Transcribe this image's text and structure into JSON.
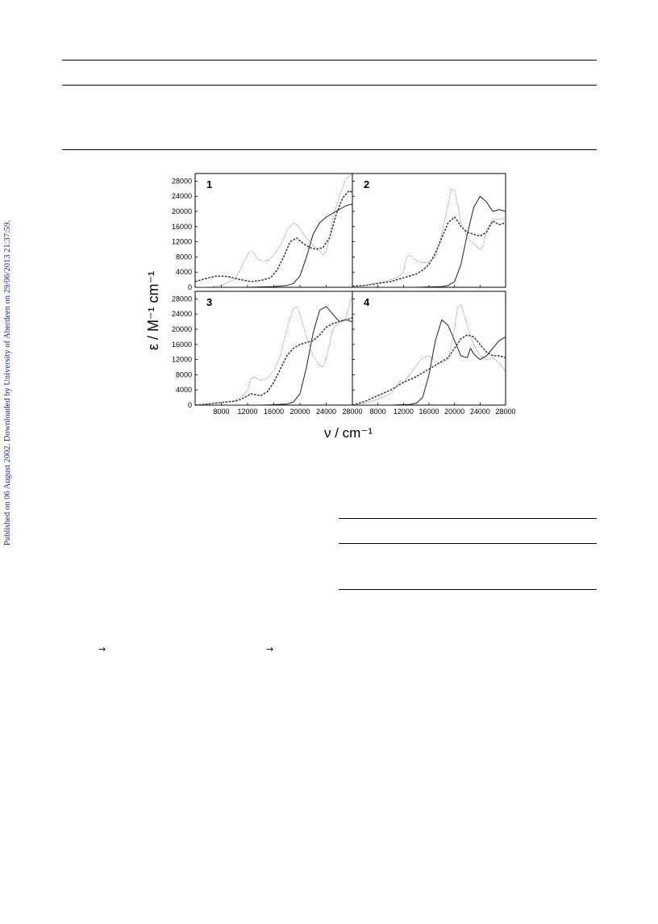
{
  "sidebar_note": "Published on 06 August 2002. Downloaded by University of Aberdeen on 29/06/2013 21:37:59.",
  "arrows": [
    "→",
    "→"
  ],
  "figure": {
    "ylabel": "ε / M⁻¹ cm⁻¹",
    "xlabel": "ν / cm⁻¹"
  },
  "chart_data": [
    {
      "type": "line",
      "panel_label": "1",
      "xlim": [
        4000,
        28000
      ],
      "ylim": [
        0,
        30000
      ],
      "yticks": [
        0,
        4000,
        8000,
        12000,
        16000,
        20000,
        24000,
        28000
      ],
      "series": [
        {
          "style": "solid",
          "x": [
            4000,
            8000,
            12000,
            14000,
            16000,
            18000,
            19000,
            20000,
            21000,
            22000,
            23000,
            24000,
            25000,
            26000,
            27000,
            28000
          ],
          "y": [
            0,
            0,
            0,
            100,
            200,
            500,
            1000,
            3000,
            8000,
            14000,
            17000,
            18500,
            19500,
            20500,
            21500,
            22000
          ]
        },
        {
          "style": "dashed",
          "x": [
            4000,
            6000,
            7500,
            9000,
            11000,
            12500,
            14000,
            15500,
            16500,
            17500,
            18500,
            19500,
            20500,
            21500,
            22500,
            23500,
            24500,
            25500,
            26500,
            27500,
            28000
          ],
          "y": [
            1500,
            2500,
            3000,
            2800,
            2000,
            1500,
            1800,
            2500,
            4500,
            8000,
            12000,
            13000,
            11500,
            10500,
            10000,
            10500,
            13000,
            19000,
            23500,
            25500,
            25000
          ]
        },
        {
          "style": "dotted",
          "x": [
            4000,
            6000,
            8000,
            10000,
            11000,
            12000,
            12500,
            13000,
            13500,
            14000,
            15000,
            16000,
            17000,
            18000,
            19000,
            19500,
            20000,
            21000,
            22000,
            23000,
            23500,
            24000,
            24500,
            25000,
            26000,
            27000,
            28000
          ],
          "y": [
            0,
            0,
            500,
            2000,
            5000,
            8500,
            9500,
            9000,
            7500,
            7000,
            7000,
            8500,
            11000,
            15000,
            17000,
            16500,
            15500,
            13000,
            11000,
            9500,
            8500,
            9500,
            13000,
            18000,
            24000,
            28500,
            30000
          ]
        }
      ]
    },
    {
      "type": "line",
      "panel_label": "2",
      "xlim": [
        4000,
        28000
      ],
      "ylim": [
        0,
        30000
      ],
      "yticks": [
        0,
        4000,
        8000,
        12000,
        16000,
        20000,
        24000,
        28000
      ],
      "series": [
        {
          "style": "solid",
          "x": [
            4000,
            10000,
            14000,
            16000,
            18000,
            19000,
            20000,
            21000,
            22000,
            23000,
            24000,
            25000,
            26000,
            27000,
            28000
          ],
          "y": [
            0,
            0,
            0,
            100,
            200,
            500,
            1500,
            6000,
            14000,
            21000,
            24000,
            22500,
            20000,
            20500,
            20000
          ]
        },
        {
          "style": "dashed",
          "x": [
            4000,
            6000,
            8000,
            10000,
            11000,
            12000,
            13000,
            14000,
            15000,
            16000,
            17000,
            18000,
            19000,
            20000,
            20500,
            21000,
            22000,
            23000,
            24000,
            25000,
            25500,
            26000,
            27000,
            28000
          ],
          "y": [
            300,
            500,
            1000,
            1500,
            2000,
            2500,
            3000,
            3500,
            4500,
            6000,
            9000,
            13000,
            17000,
            18500,
            17500,
            16000,
            14500,
            14000,
            13500,
            14500,
            16000,
            17500,
            16500,
            17000
          ]
        },
        {
          "style": "dotted",
          "x": [
            4000,
            6000,
            8000,
            10000,
            11000,
            12000,
            12500,
            13000,
            14000,
            15000,
            16000,
            17000,
            18000,
            19000,
            19500,
            20000,
            20500,
            21000,
            22000,
            23000,
            24000,
            24500,
            25000,
            26000,
            27000,
            28000
          ],
          "y": [
            0,
            500,
            1200,
            2000,
            2500,
            4000,
            8000,
            8500,
            7000,
            6500,
            6500,
            8000,
            14000,
            22000,
            26000,
            25500,
            22000,
            17000,
            13000,
            11500,
            10000,
            11000,
            15000,
            18000,
            18000,
            18000
          ]
        }
      ]
    },
    {
      "type": "line",
      "panel_label": "3",
      "xlim": [
        4000,
        28000
      ],
      "ylim": [
        0,
        30000
      ],
      "yticks": [
        0,
        4000,
        8000,
        12000,
        16000,
        20000,
        24000,
        28000
      ],
      "series": [
        {
          "style": "solid",
          "x": [
            4000,
            10000,
            14000,
            16000,
            18000,
            19000,
            20000,
            21000,
            22000,
            23000,
            24000,
            25000,
            26000,
            27000,
            28000
          ],
          "y": [
            0,
            0,
            0,
            100,
            300,
            800,
            3000,
            10000,
            19000,
            25000,
            26000,
            24000,
            22000,
            22500,
            22000
          ]
        },
        {
          "style": "dashed",
          "x": [
            4000,
            6000,
            8000,
            10000,
            11000,
            12000,
            12500,
            13000,
            14000,
            15000,
            16000,
            17000,
            18000,
            19000,
            20000,
            21000,
            22000,
            23000,
            24000,
            25000,
            26000,
            27000,
            28000
          ],
          "y": [
            0,
            300,
            700,
            1000,
            1500,
            2500,
            3000,
            2800,
            2500,
            3500,
            6000,
            9500,
            13000,
            15000,
            16000,
            16500,
            17000,
            18500,
            20500,
            21500,
            22000,
            22500,
            23000
          ]
        },
        {
          "style": "dotted",
          "x": [
            4000,
            6000,
            8000,
            10000,
            11000,
            12000,
            12500,
            13000,
            14000,
            15000,
            16000,
            17000,
            18000,
            19000,
            19500,
            20000,
            21000,
            22000,
            23000,
            23500,
            24000,
            24500,
            25000,
            26000,
            27000,
            28000
          ],
          "y": [
            0,
            300,
            700,
            1200,
            2000,
            4000,
            7000,
            7500,
            6500,
            7000,
            9000,
            13000,
            20000,
            25500,
            26000,
            24000,
            18000,
            13000,
            10500,
            10000,
            12000,
            16000,
            20000,
            22000,
            23000,
            29000
          ]
        }
      ]
    },
    {
      "type": "line",
      "panel_label": "4",
      "xlim": [
        4000,
        28000
      ],
      "ylim": [
        0,
        30000
      ],
      "yticks": [
        0,
        4000,
        8000,
        12000,
        16000,
        20000,
        24000,
        28000
      ],
      "series": [
        {
          "style": "solid",
          "x": [
            4000,
            10000,
            13000,
            14000,
            15000,
            16000,
            17000,
            18000,
            19000,
            20000,
            21000,
            22000,
            22500,
            23000,
            24000,
            25000,
            26000,
            27000,
            28000
          ],
          "y": [
            0,
            0,
            200,
            500,
            2000,
            8000,
            17000,
            22500,
            21000,
            17000,
            13000,
            12500,
            15000,
            13500,
            12000,
            13000,
            15000,
            17000,
            18000
          ]
        },
        {
          "style": "dashed",
          "x": [
            4000,
            6000,
            8000,
            10000,
            12000,
            14000,
            16000,
            18000,
            19000,
            20000,
            21000,
            22000,
            23000,
            24000,
            25000,
            26000,
            27000,
            28000
          ],
          "y": [
            0,
            1000,
            2500,
            4000,
            6000,
            7500,
            9500,
            11500,
            12500,
            15000,
            17500,
            18500,
            18000,
            16000,
            14000,
            13000,
            13000,
            12500
          ]
        },
        {
          "style": "dotted",
          "x": [
            4000,
            6000,
            8000,
            10000,
            11000,
            11500,
            12000,
            13000,
            14000,
            15000,
            16000,
            17000,
            18000,
            19000,
            20000,
            20500,
            21000,
            22000,
            23000,
            24000,
            25000,
            26000,
            27000,
            28000
          ],
          "y": [
            0,
            500,
            1500,
            3000,
            5000,
            6500,
            6000,
            8000,
            10500,
            12500,
            13000,
            11500,
            11000,
            12000,
            20000,
            26000,
            26500,
            21000,
            16000,
            13000,
            12000,
            12500,
            11000,
            9000
          ]
        }
      ]
    }
  ]
}
